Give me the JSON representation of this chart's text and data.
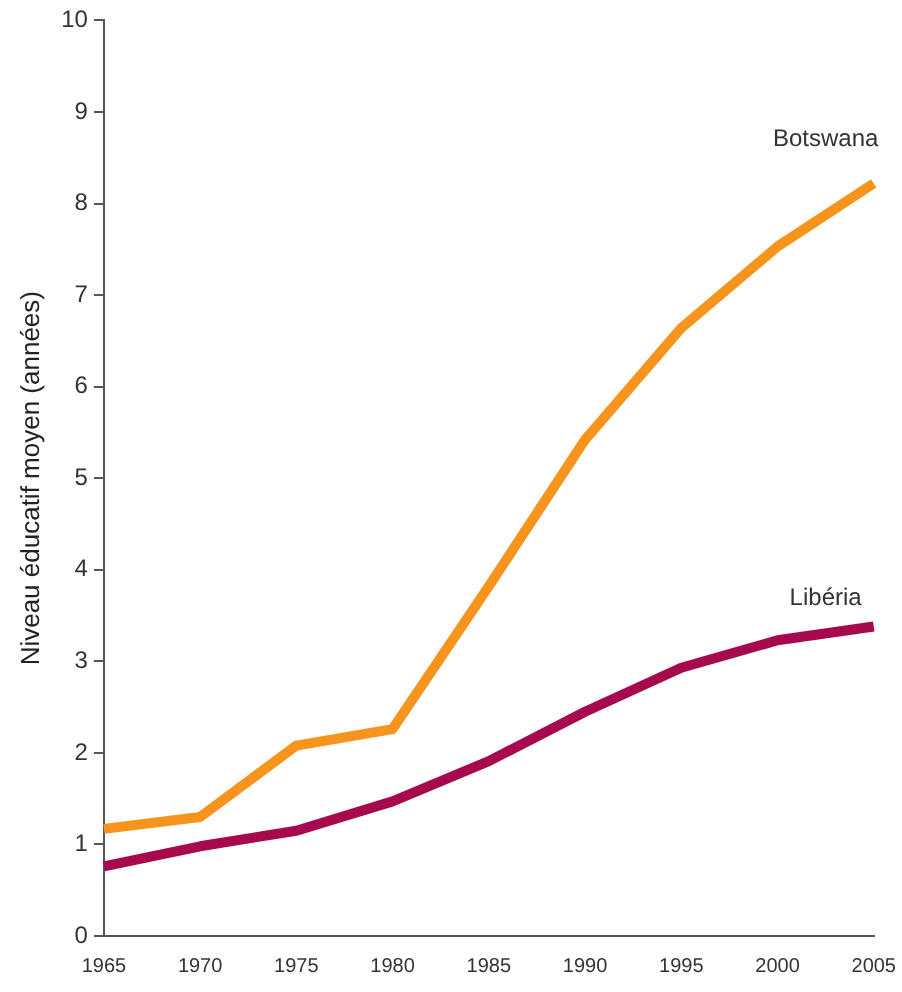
{
  "chart_data": {
    "type": "line",
    "ylabel": "Niveau éducatif moyen (années)",
    "categories": [
      "1965",
      "1970",
      "1975",
      "1980",
      "1985",
      "1990",
      "1995",
      "2000",
      "2005"
    ],
    "series": [
      {
        "name": "Botswana",
        "color": "#f7941d",
        "values": [
          1.17,
          1.3,
          2.08,
          2.26,
          3.82,
          5.42,
          6.64,
          7.53,
          8.22
        ]
      },
      {
        "name": "Libéria",
        "color": "#a6094d",
        "values": [
          0.76,
          0.98,
          1.15,
          1.47,
          1.91,
          2.45,
          2.93,
          3.23,
          3.38
        ]
      }
    ],
    "ylim": [
      0,
      10
    ],
    "yticks": [
      0,
      1,
      2,
      3,
      4,
      5,
      6,
      7,
      8,
      9,
      10
    ],
    "grid": false,
    "legend": false,
    "marker": "none",
    "line_style": "solid"
  }
}
